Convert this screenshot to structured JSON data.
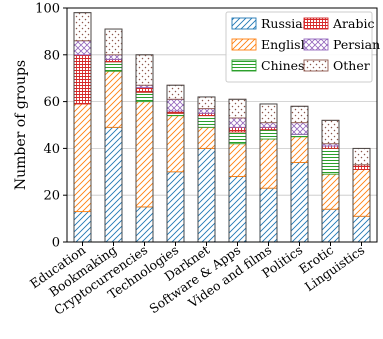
{
  "chart_data": {
    "type": "bar",
    "stacked": true,
    "ylabel": "Number of groups",
    "xlabel": "",
    "ylim": [
      0,
      100
    ],
    "yticks": [
      0,
      20,
      40,
      60,
      80,
      100
    ],
    "grid": "horizontal",
    "legend_position": "top-right",
    "categories": [
      "Education",
      "Bookmaking",
      "Cryptocurrencies",
      "Technologies",
      "Darknet",
      "Software & Apps",
      "Video and films",
      "Politics",
      "Erotic",
      "Linguistics"
    ],
    "series": [
      {
        "name": "Russian",
        "color": "#1f77b4",
        "pattern": "diagonal-hatch",
        "values": [
          13,
          49,
          15,
          30,
          40,
          28,
          23,
          34,
          14,
          11
        ]
      },
      {
        "name": "English",
        "color": "#ff7f0e",
        "pattern": "diagonal-hatch",
        "values": [
          46,
          24,
          45,
          24,
          9,
          14,
          21,
          11,
          15,
          20
        ]
      },
      {
        "name": "Chinese",
        "color": "#2ca02c",
        "pattern": "horizontal-lines",
        "values": [
          0,
          4,
          4,
          1,
          5,
          5,
          4,
          1,
          11,
          0
        ]
      },
      {
        "name": "Arabic",
        "color": "#d62728",
        "pattern": "grid",
        "values": [
          21,
          1,
          2,
          1,
          1,
          2,
          1,
          0,
          1,
          2
        ]
      },
      {
        "name": "Persian",
        "color": "#9467bd",
        "pattern": "cross-hatch",
        "values": [
          6,
          2,
          1,
          5,
          2,
          4,
          2,
          5,
          1,
          0
        ]
      },
      {
        "name": "Other",
        "color": "#8c564b",
        "pattern": "dots",
        "values": [
          12,
          11,
          13,
          6,
          5,
          8,
          8,
          7,
          10,
          7
        ]
      }
    ]
  }
}
